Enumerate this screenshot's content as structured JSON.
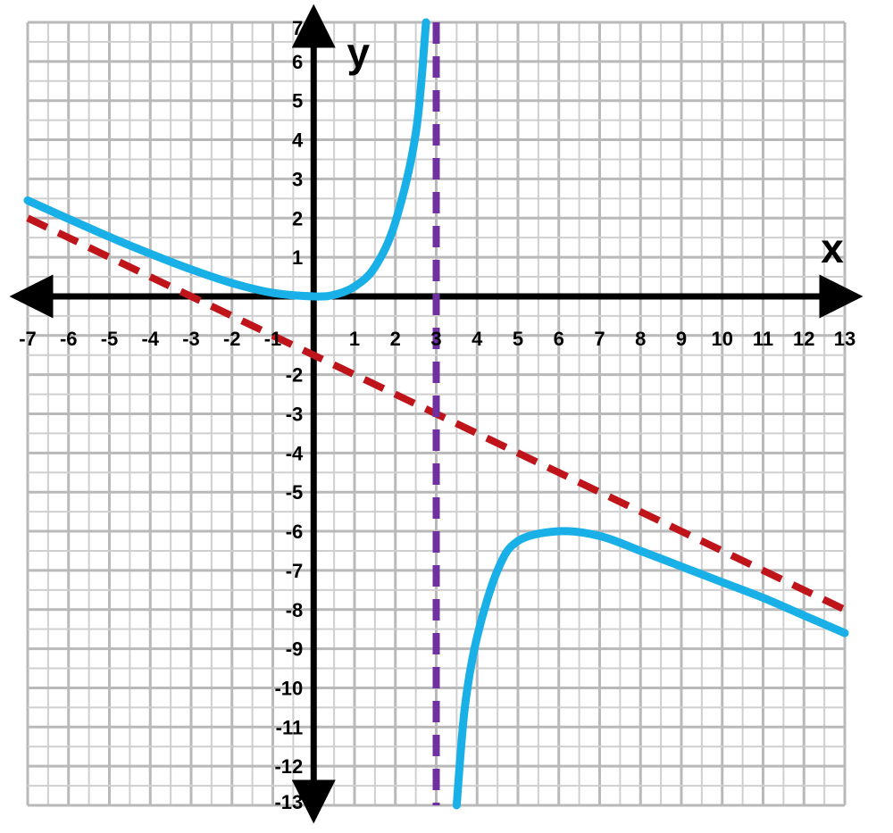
{
  "chart_data": {
    "type": "line",
    "title": "",
    "xlabel": "x",
    "ylabel": "y",
    "xlim": [
      -7,
      13
    ],
    "ylim": [
      -13,
      7
    ],
    "grid": true,
    "x_ticks": [
      "-7",
      "-6",
      "-5",
      "-4",
      "-3",
      "-2",
      "-1",
      "1",
      "2",
      "3",
      "4",
      "5",
      "6",
      "7",
      "8",
      "9",
      "10",
      "11",
      "12",
      "13"
    ],
    "y_ticks": [
      "7",
      "6",
      "5",
      "4",
      "3",
      "2",
      "1",
      "-2",
      "-3",
      "-4",
      "-5",
      "-6",
      "-7",
      "-8",
      "-9",
      "-10",
      "-11",
      "-12",
      "-13"
    ],
    "series": [
      {
        "kind": "curve",
        "color": "#19b0e8",
        "branches": [
          {
            "points": [
              [
                -7,
                2.45
              ],
              [
                -6,
                1.98
              ],
              [
                -5,
                1.52
              ],
              [
                -4,
                1.09
              ],
              [
                -3,
                0.69
              ],
              [
                -2,
                0.34
              ],
              [
                -1,
                0.09
              ],
              [
                0,
                0
              ],
              [
                0.5,
                0.04
              ],
              [
                1,
                0.25
              ],
              [
                1.5,
                0.75
              ],
              [
                2,
                1.9
              ],
              [
                2.5,
                4.17
              ],
              [
                2.75,
                7.0
              ]
            ]
          },
          {
            "points": [
              [
                3.5,
                -13.0
              ],
              [
                3.7,
                -10.5
              ],
              [
                4,
                -8.7
              ],
              [
                4.5,
                -7.0
              ],
              [
                5,
                -6.25
              ],
              [
                6,
                -6.0
              ],
              [
                7,
                -6.12
              ],
              [
                8,
                -6.5
              ],
              [
                9,
                -6.9
              ],
              [
                10,
                -7.3
              ],
              [
                11,
                -7.7
              ],
              [
                12,
                -8.15
              ],
              [
                13,
                -8.6
              ]
            ]
          }
        ]
      },
      {
        "kind": "oblique-asymptote",
        "color": "#c0141b",
        "dashed": true,
        "points": [
          [
            -7,
            2
          ],
          [
            13,
            -8
          ]
        ]
      },
      {
        "kind": "vertical-asymptote",
        "color": "#7030a0",
        "dashed": true,
        "x": 3
      }
    ]
  }
}
